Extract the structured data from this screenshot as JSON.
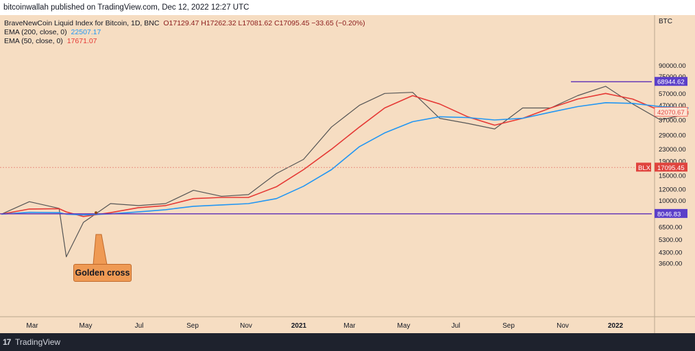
{
  "header": {
    "published_text": "bitcoinwallah published on TradingView.com, Dec 12, 2022 12:27 UTC"
  },
  "legend": {
    "symbol": "BraveNewCoin Liquid Index for Bitcoin, 1D, BNC",
    "ohlc": "O17129.47  H17262.32  L17081.62  C17095.45  −33.65 (−0.20%)",
    "ema200_label": "EMA (200, close, 0)",
    "ema200_value": "22507.17",
    "ema50_label": "EMA (50, close, 0)",
    "ema50_value": "17671.07"
  },
  "annotation": {
    "text": "Golden cross",
    "color": "#ef9a54"
  },
  "footer": {
    "brand": "TradingView",
    "logo": "17"
  },
  "colors": {
    "background": "#f6ddc2",
    "ema200": "#2196f3",
    "ema50": "#e53935",
    "hline": "#673ab7",
    "price": "#555555",
    "last_price": "#f0574f"
  },
  "chart_data": {
    "type": "line",
    "title": "BraveNewCoin Liquid Index for Bitcoin, 1D, BNC",
    "y_scale": "log",
    "y_unit": "BTC",
    "ylim": [
      3200,
      110000
    ],
    "y_ticks": [
      "90000.00",
      "75000.00",
      "57000.00",
      "47000.00",
      "37000.00",
      "29000.00",
      "23000.00",
      "19000.00",
      "15000.00",
      "12000.00",
      "10000.00",
      "8000.00",
      "6500.00",
      "5300.00",
      "4300.00",
      "3600.00"
    ],
    "x_ticks": [
      "Mar",
      "May",
      "Jul",
      "Sep",
      "Nov",
      "2021",
      "Mar",
      "May",
      "Jul",
      "Sep",
      "Nov",
      "2022"
    ],
    "x": [
      "2020-01",
      "2020-02",
      "2020-03-05",
      "2020-03-13",
      "2020-04",
      "2020-05",
      "2020-06",
      "2020-07",
      "2020-08",
      "2020-09",
      "2020-10",
      "2020-11",
      "2020-12",
      "2021-01",
      "2021-02",
      "2021-03",
      "2021-04",
      "2021-05",
      "2021-06",
      "2021-07",
      "2021-08",
      "2021-09",
      "2021-10",
      "2021-11",
      "2021-12",
      "2022-01",
      "2022-02"
    ],
    "series": [
      {
        "values": [
          8000,
          9800,
          8800,
          4000,
          7000,
          9500,
          9200,
          9500,
          11800,
          10700,
          11000,
          15500,
          19500,
          33000,
          47000,
          57000,
          58000,
          38000,
          35000,
          32000,
          45000,
          45000,
          55000,
          64000,
          48000,
          37000,
          41000
        ]
      },
      {
        "values": [
          8000,
          8700,
          8750,
          8300,
          7700,
          8200,
          8900,
          9200,
          10300,
          10500,
          10500,
          12500,
          16500,
          23000,
          33000,
          45000,
          55000,
          48000,
          39000,
          34000,
          38000,
          45000,
          52000,
          57000,
          52000,
          43000,
          42100
        ]
      },
      {
        "values": [
          8000,
          8250,
          8200,
          8000,
          7900,
          8050,
          8300,
          8600,
          9100,
          9300,
          9500,
          10300,
          12600,
          16500,
          24000,
          30000,
          36000,
          39000,
          38500,
          37000,
          38000,
          42000,
          46000,
          49000,
          48500,
          46000,
          45000
        ]
      }
    ],
    "horizontal_lines": [
      {
        "value": 68944.62,
        "label": "68944.62"
      },
      {
        "value": 8046.83,
        "label": "8046.83"
      },
      {
        "value": 17095.45,
        "label": "17095.45",
        "tag": "BLX",
        "style": "dotted"
      }
    ],
    "last_price_value": "42070.67"
  }
}
